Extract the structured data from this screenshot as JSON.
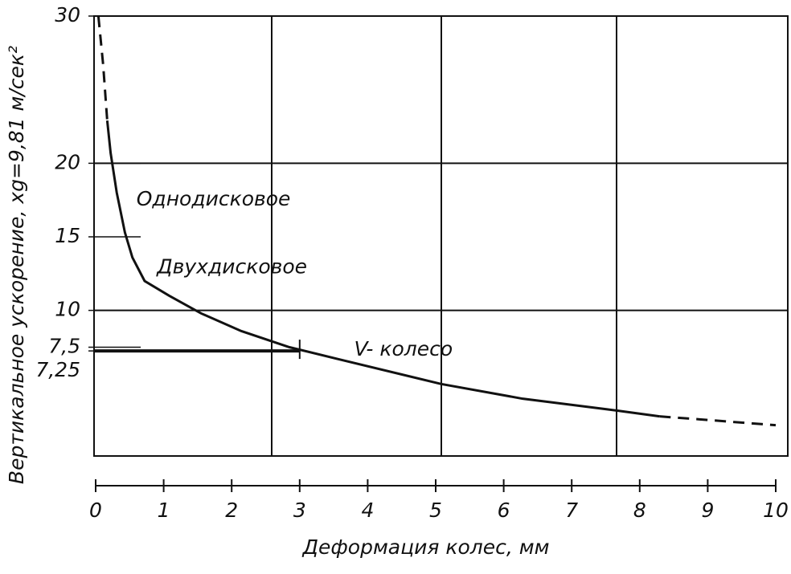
{
  "chart_data": {
    "type": "line",
    "xlabel": "Деформация колес, мм",
    "ylabel": "Вертикальное ускорение, xg=9,81 м/сек²",
    "xlim": [
      0,
      10
    ],
    "xticks": [
      0,
      1,
      2,
      3,
      4,
      5,
      6,
      7,
      8,
      9,
      10
    ],
    "ylim": [
      0,
      30
    ],
    "yticks": [
      30,
      20,
      15,
      10,
      {
        "value": 7.5,
        "label": "7,5"
      },
      {
        "value": 7.25,
        "label": "7,25"
      }
    ],
    "grid_y": [
      20,
      10
    ],
    "color": "#111111",
    "series": [
      {
        "style": "dashed",
        "x": [
          0.04,
          0.11,
          0.17
        ],
        "values": [
          30,
          26.7,
          22.9
        ]
      },
      {
        "style": "solid",
        "x": [
          0.17,
          0.22,
          0.31,
          0.43,
          0.54,
          0.72,
          1.08,
          1.55,
          2.14,
          2.85,
          3.56,
          5.08,
          6.28,
          7.66,
          8.29
        ],
        "values": [
          22.9,
          20.7,
          18.0,
          15.3,
          13.6,
          12.0,
          11.0,
          9.8,
          8.6,
          7.5,
          6.7,
          5.0,
          4.0,
          3.2,
          2.8
        ]
      },
      {
        "style": "dashed",
        "x": [
          8.29,
          8.88,
          10.0
        ],
        "values": [
          2.8,
          2.6,
          2.2
        ]
      }
    ],
    "guide": {
      "x": 3,
      "y": 7.25
    },
    "annotations": [
      {
        "text": "Однодисковое",
        "x": 0.6,
        "y": 17.5
      },
      {
        "text": "Двухдисковое",
        "x": 0.9,
        "y": 12.9
      },
      {
        "text": "V- колесо",
        "x": 3.8,
        "y": 7.3
      }
    ]
  }
}
